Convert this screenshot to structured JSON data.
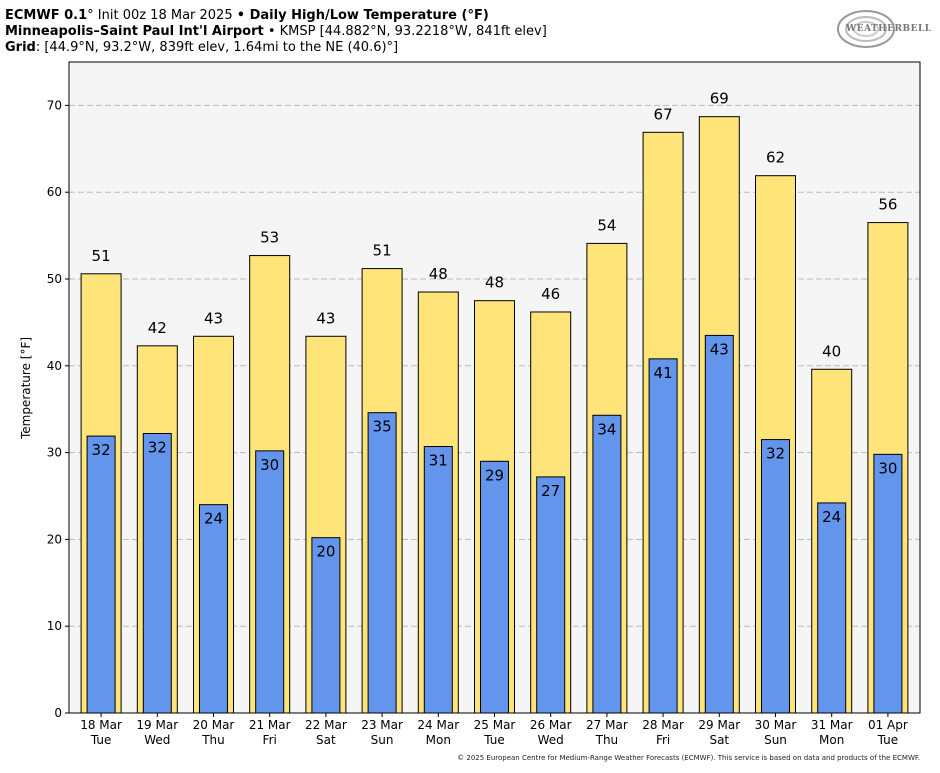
{
  "header": {
    "line1_model": "ECMWF 0.1",
    "line1_deg": "°",
    "line1_init": " Init 00z 18 Mar 2025 ",
    "line1_bullet": "•",
    "line1_title": " Daily High/Low Temperature (",
    "line1_unit": "°F)",
    "line2_station": "Minneapolis–Saint Paul Int'l Airport",
    "line2_rest": " • KMSP [44.882°N, 93.2218°W, 841ft elev]",
    "line3_label": "Grid",
    "line3_rest": ": [44.9°N, 93.2°W, 839ft elev, 1.64mi to the NE (40.6)°]"
  },
  "logo": {
    "text": "WEATHERBELL"
  },
  "footer": "© 2025 European Centre for Medium-Range Weather Forecasts (ECMWF). This service is based on data and products of the ECMWF.",
  "colors": {
    "high": "#FFE47A",
    "low": "#6495ED",
    "plot_bg": "#F5F5F5",
    "grid": "#BBBBBB"
  },
  "chart_data": {
    "type": "bar",
    "title": "Daily High/Low Temperature (°F)",
    "ylabel": "Temperature [°F]",
    "xlabel": "",
    "ylim": [
      0,
      75
    ],
    "yticks": [
      0,
      10,
      20,
      30,
      40,
      50,
      60,
      70
    ],
    "grid": true,
    "categories": [
      {
        "date": "18 Mar",
        "day": "Tue"
      },
      {
        "date": "19 Mar",
        "day": "Wed"
      },
      {
        "date": "20 Mar",
        "day": "Thu"
      },
      {
        "date": "21 Mar",
        "day": "Fri"
      },
      {
        "date": "22 Mar",
        "day": "Sat"
      },
      {
        "date": "23 Mar",
        "day": "Sun"
      },
      {
        "date": "24 Mar",
        "day": "Mon"
      },
      {
        "date": "25 Mar",
        "day": "Tue"
      },
      {
        "date": "26 Mar",
        "day": "Wed"
      },
      {
        "date": "27 Mar",
        "day": "Thu"
      },
      {
        "date": "28 Mar",
        "day": "Fri"
      },
      {
        "date": "29 Mar",
        "day": "Sat"
      },
      {
        "date": "30 Mar",
        "day": "Sun"
      },
      {
        "date": "31 Mar",
        "day": "Mon"
      },
      {
        "date": "01 Apr",
        "day": "Tue"
      }
    ],
    "series": [
      {
        "name": "High",
        "values": [
          50.6,
          42.3,
          43.4,
          52.7,
          43.4,
          51.2,
          48.5,
          47.5,
          46.2,
          54.1,
          66.9,
          68.7,
          61.9,
          39.6,
          56.5
        ],
        "labels": [
          "51",
          "42",
          "43",
          "53",
          "43",
          "51",
          "48",
          "48",
          "46",
          "54",
          "67",
          "69",
          "62",
          "40",
          "56"
        ]
      },
      {
        "name": "Low",
        "values": [
          31.9,
          32.2,
          24.0,
          30.2,
          20.2,
          34.6,
          30.7,
          29.0,
          27.2,
          34.3,
          40.8,
          43.5,
          31.5,
          24.2,
          29.8
        ],
        "labels": [
          "32",
          "32",
          "24",
          "30",
          "20",
          "35",
          "31",
          "29",
          "27",
          "34",
          "41",
          "43",
          "32",
          "24",
          "30"
        ]
      }
    ]
  }
}
